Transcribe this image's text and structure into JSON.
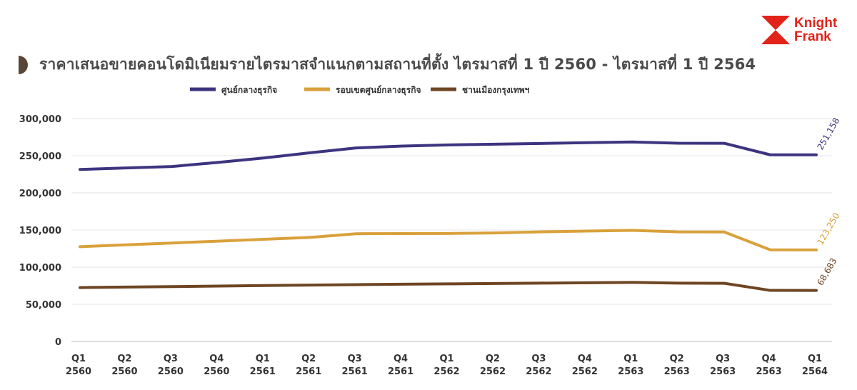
{
  "logo": {
    "line1": "Knight",
    "line2": "Frank"
  },
  "chart_data": {
    "type": "line",
    "title": "ราคาเสนอขายคอนโดมิเนียมรายไตรมาสจำแนกตามสถานที่ตั้ง ไตรมาสที่ 1 ปี 2560 - ไตรมาสที่ 1 ปี 2564",
    "xlabel": "",
    "ylabel": "",
    "categories": [
      [
        "Q1",
        "2560"
      ],
      [
        "Q2",
        "2560"
      ],
      [
        "Q3",
        "2560"
      ],
      [
        "Q4",
        "2560"
      ],
      [
        "Q1",
        "2561"
      ],
      [
        "Q2",
        "2561"
      ],
      [
        "Q3",
        "2561"
      ],
      [
        "Q4",
        "2561"
      ],
      [
        "Q1",
        "2562"
      ],
      [
        "Q2",
        "2562"
      ],
      [
        "Q3",
        "2562"
      ],
      [
        "Q4",
        "2562"
      ],
      [
        "Q1",
        "2563"
      ],
      [
        "Q2",
        "2563"
      ],
      [
        "Q3",
        "2563"
      ],
      [
        "Q4",
        "2563"
      ],
      [
        "Q1",
        "2564"
      ]
    ],
    "ylim": [
      0,
      300000
    ],
    "yticks": [
      0,
      50000,
      100000,
      150000,
      200000,
      250000,
      300000
    ],
    "ytick_labels": [
      "0",
      "50,000",
      "100,000",
      "150,000",
      "200,000",
      "250,000",
      "300,000"
    ],
    "grid": true,
    "legend_position": "top",
    "series": [
      {
        "name": "ศูนย์กลางธุรกิจ",
        "color": "#3d3480",
        "values": [
          231500,
          233500,
          235500,
          241000,
          247000,
          254000,
          260500,
          263000,
          264500,
          265500,
          266500,
          267500,
          268500,
          266800,
          266700,
          251200,
          251158
        ],
        "end_label": "251,158"
      },
      {
        "name": "รอบเขตศูนย์กลางธุรกิจ",
        "color": "#d9a13b",
        "values": [
          127500,
          130000,
          132500,
          135000,
          137500,
          140000,
          145000,
          145200,
          145300,
          146000,
          147500,
          148500,
          149500,
          147500,
          147300,
          123300,
          123250
        ],
        "end_label": "123,250"
      },
      {
        "name": "ชานเมืองกรุงเทพฯ",
        "color": "#6e4523",
        "values": [
          72500,
          73200,
          73800,
          74500,
          75200,
          75800,
          76500,
          77000,
          77500,
          78000,
          78500,
          79000,
          79500,
          78500,
          78300,
          68700,
          68683
        ],
        "end_label": "68,683"
      }
    ]
  }
}
